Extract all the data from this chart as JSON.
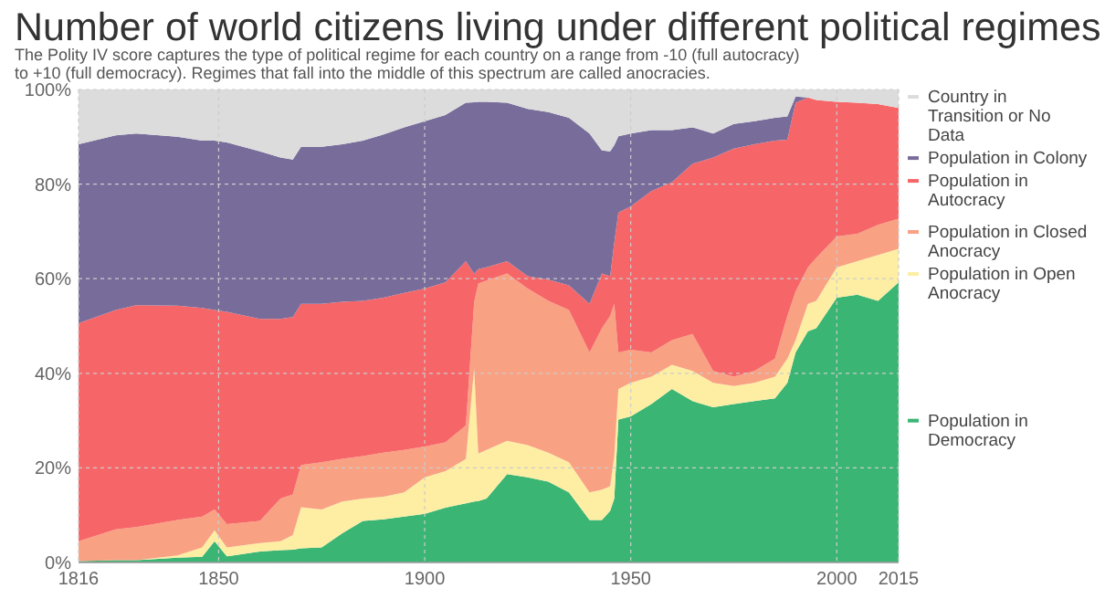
{
  "chart_data": {
    "type": "area",
    "stacked": true,
    "title": "Number of world citizens living under different political regimes",
    "subtitle": "The Polity IV score captures the type of political regime for each country on a range from -10 (full autocracy) to +10 (full democracy). Regimes that fall into the middle of this spectrum are called anocracies.",
    "x": [
      1816,
      1825,
      1830,
      1840,
      1846,
      1849,
      1852,
      1860,
      1865,
      1868,
      1870,
      1875,
      1880,
      1885,
      1890,
      1895,
      1900,
      1905,
      1910,
      1912,
      1913,
      1915,
      1920,
      1925,
      1930,
      1935,
      1940,
      1943,
      1945,
      1946,
      1947,
      1950,
      1955,
      1960,
      1965,
      1970,
      1975,
      1980,
      1985,
      1988,
      1990,
      1993,
      1995,
      2000,
      2005,
      2010,
      2015
    ],
    "xlim": [
      1816,
      2015
    ],
    "xticks": [
      1816,
      1850,
      1900,
      1950,
      2000,
      2015
    ],
    "ylim": [
      0,
      100
    ],
    "yticks": [
      {
        "value": 0,
        "label": "0%"
      },
      {
        "value": 20,
        "label": "20%"
      },
      {
        "value": 40,
        "label": "40%"
      },
      {
        "value": 60,
        "label": "60%"
      },
      {
        "value": 80,
        "label": "80%"
      },
      {
        "value": 100,
        "label": "100%"
      }
    ],
    "grid": true,
    "legend": "right",
    "series": [
      {
        "name": "Population in Democracy",
        "color": "#3bb574",
        "values": [
          0.3,
          0.5,
          0.5,
          1,
          1.2,
          4.5,
          1.3,
          2.3,
          2.6,
          2.7,
          3,
          3.2,
          6.2,
          8.8,
          9.1,
          9.7,
          10.3,
          11.6,
          12.5,
          12.9,
          13,
          13.5,
          18.7,
          18,
          17.1,
          14.8,
          9,
          9,
          10.9,
          13.5,
          30.2,
          30.9,
          33.5,
          36.7,
          34.1,
          32.8,
          33.5,
          34.1,
          34.7,
          38,
          44.4,
          48.9,
          49.5,
          56,
          56.6,
          55.3,
          59.2
        ]
      },
      {
        "name": "Population in Open Anocracy",
        "color": "#fdeea4",
        "values": [
          0,
          0,
          0,
          0.5,
          2,
          2.3,
          1.9,
          1.8,
          1.9,
          3.1,
          8.7,
          8,
          6.7,
          4.7,
          4.8,
          5.1,
          7.7,
          7.7,
          9.4,
          28.1,
          10,
          10.3,
          7,
          6.8,
          6.1,
          6.4,
          5.8,
          6.4,
          5.2,
          9,
          6.5,
          7.1,
          5.8,
          5.1,
          6.4,
          5.2,
          3.8,
          3.9,
          4.6,
          5.1,
          2.6,
          5.8,
          5.8,
          6.4,
          7.1,
          9.7,
          7.1
        ]
      },
      {
        "name": "Population in Closed Anocracy",
        "color": "#f9a183",
        "values": [
          4.2,
          6.5,
          7,
          7.5,
          6.5,
          4.4,
          4.9,
          4.7,
          9,
          8.6,
          8.9,
          10,
          9,
          9,
          9.3,
          9,
          6.5,
          6.1,
          7.1,
          14,
          36,
          35.8,
          35.4,
          33.1,
          32.1,
          32.2,
          29.6,
          34.1,
          36,
          32.2,
          7.7,
          7,
          5.1,
          5.2,
          7.8,
          2.5,
          2,
          2.5,
          3.8,
          9,
          10.3,
          7.7,
          9.1,
          6.5,
          5.8,
          6.4,
          6.4
        ]
      },
      {
        "name": "Population in Autocracy",
        "color": "#f66668",
        "values": [
          46.1,
          46.4,
          46.9,
          45.3,
          44.1,
          42.2,
          44.9,
          42.7,
          38,
          37.5,
          34.1,
          33.5,
          33.2,
          32.8,
          32.8,
          33.2,
          33.4,
          33.8,
          34.7,
          6,
          3,
          2.8,
          2.6,
          2.6,
          4.5,
          5.2,
          10.3,
          11.6,
          8.4,
          12.9,
          29.6,
          30.3,
          34.1,
          33.4,
          36,
          45.1,
          48.2,
          47.9,
          46.1,
          37.3,
          39.9,
          35.9,
          33.4,
          28.5,
          27.7,
          25.5,
          23.4
        ]
      },
      {
        "name": "Population in Colony",
        "color": "#786c9b",
        "values": [
          37.8,
          36.9,
          36.3,
          35.7,
          35.4,
          35.8,
          35.8,
          35.4,
          34.1,
          33.3,
          33.2,
          33.2,
          33.3,
          33.9,
          34.5,
          35,
          35.4,
          35.4,
          33.5,
          36.3,
          35.4,
          35,
          33.5,
          35.4,
          35.4,
          35.4,
          36,
          26,
          26.4,
          20.6,
          16.1,
          15.4,
          12.9,
          11,
          7.7,
          5.1,
          5.2,
          4.9,
          4.8,
          4.9,
          1.3,
          0,
          0,
          0,
          0,
          0,
          0
        ]
      },
      {
        "name": "Country in Transition or No Data",
        "color": "#dcdcdc",
        "values": [
          11.6,
          9.7,
          9.3,
          10,
          10.8,
          10.8,
          11.2,
          13.1,
          14.4,
          14.8,
          12.1,
          12.1,
          11.6,
          10.8,
          9.5,
          8,
          6.7,
          5.4,
          2.8,
          2.7,
          2.6,
          2.6,
          2.8,
          4.1,
          4.8,
          6,
          9.3,
          12.9,
          13.1,
          11.8,
          9.9,
          9.3,
          8.6,
          8.6,
          8,
          9.3,
          7.3,
          6.7,
          6,
          5.7,
          1.5,
          1.7,
          2.2,
          2.6,
          2.8,
          3.1,
          3.9
        ]
      }
    ]
  }
}
